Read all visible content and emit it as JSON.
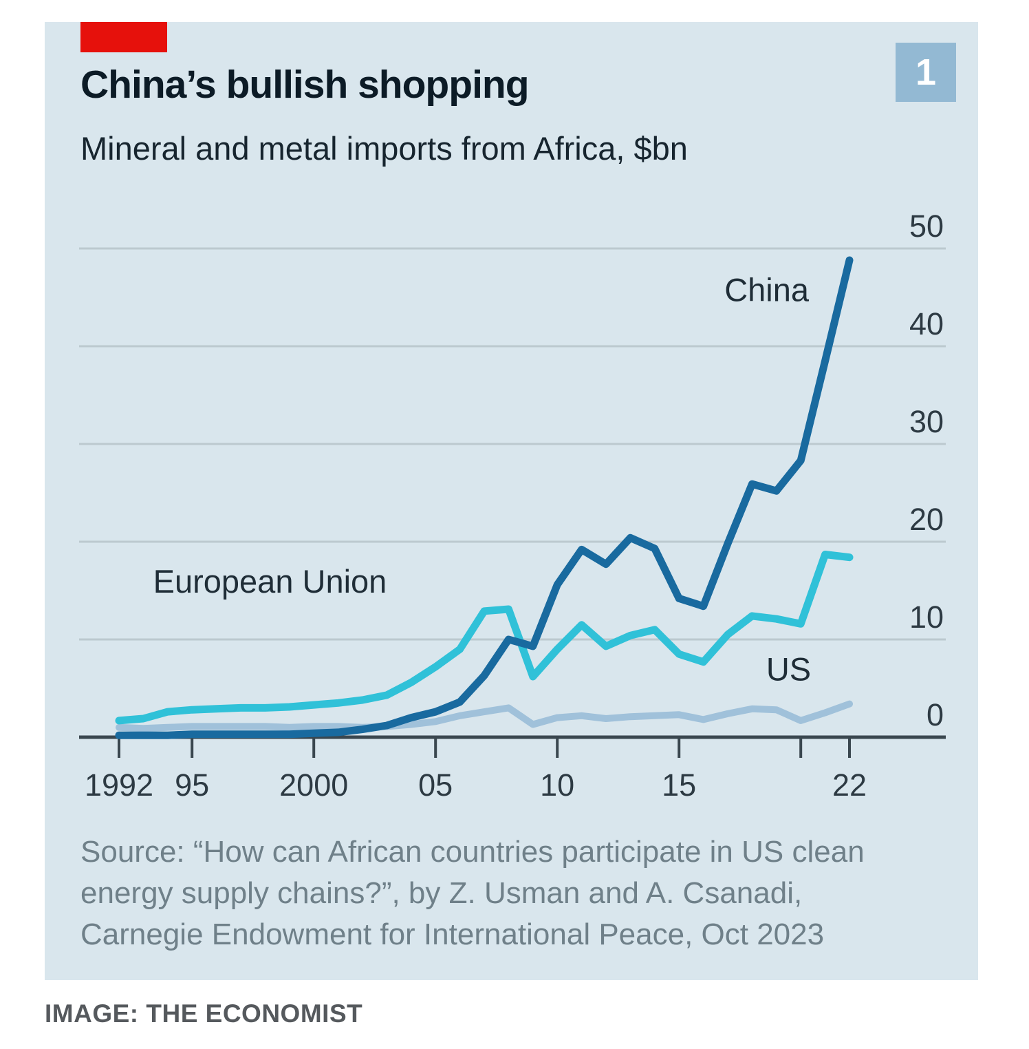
{
  "card": {
    "badge": "1"
  },
  "chart": {
    "title": "China’s bullish shopping",
    "subtitle": "Mineral and metal imports from Africa, $bn",
    "source_lines": [
      "Source: “How can African countries participate in US clean",
      "energy supply chains?”, by Z. Usman and A. Csanadi,",
      "Carnegie Endowment for International Peace, Oct 2023"
    ]
  },
  "caption": "IMAGE: THE ECONOMIST",
  "colors": {
    "card_bg": "#d9e6ed",
    "accent_red": "#e6110c",
    "grid": "#bcc9cf",
    "axis": "#3a474f",
    "tick_label": "#2d3a43",
    "series_label": "#1f2d37",
    "china": "#196a9f",
    "eu": "#30c1d8",
    "us": "#a0c1da"
  },
  "chart_data": {
    "type": "line",
    "title": "China’s bullish shopping",
    "subtitle": "Mineral and metal imports from Africa, $bn",
    "xlabel": "",
    "ylabel": "$bn",
    "ylim": [
      0,
      50
    ],
    "grid": "horizontal",
    "legend": "inline-labels",
    "x": [
      1992,
      1993,
      1994,
      1995,
      1996,
      1997,
      1998,
      1999,
      2000,
      2001,
      2002,
      2003,
      2004,
      2005,
      2006,
      2007,
      2008,
      2009,
      2010,
      2011,
      2012,
      2013,
      2014,
      2015,
      2016,
      2017,
      2018,
      2019,
      2020,
      2021,
      2022
    ],
    "y_ticks": [
      0,
      10,
      20,
      30,
      40,
      50
    ],
    "x_ticks": [
      {
        "x": 1992,
        "label": "1992"
      },
      {
        "x": 1995,
        "label": "95"
      },
      {
        "x": 2000,
        "label": "2000"
      },
      {
        "x": 2005,
        "label": "05"
      },
      {
        "x": 2010,
        "label": "10"
      },
      {
        "x": 2015,
        "label": "15"
      },
      {
        "x": 2020,
        "label": ""
      },
      {
        "x": 2022,
        "label": "22"
      }
    ],
    "series": [
      {
        "id": "china",
        "name": "China",
        "color": "#196a9f",
        "width": 11,
        "values": [
          0.2,
          0.2,
          0.2,
          0.3,
          0.3,
          0.3,
          0.3,
          0.3,
          0.4,
          0.5,
          0.8,
          1.2,
          2.0,
          2.6,
          3.6,
          6.3,
          10.0,
          9.3,
          15.6,
          19.2,
          17.7,
          20.4,
          19.3,
          14.2,
          13.4,
          19.8,
          25.9,
          25.2,
          28.3,
          38.5,
          48.8
        ],
        "label": {
          "text": "China",
          "x": 2018.6,
          "y": 44.6
        }
      },
      {
        "id": "eu",
        "name": "European Union",
        "color": "#30c1d8",
        "width": 11,
        "values": [
          1.7,
          1.9,
          2.6,
          2.8,
          2.9,
          3.0,
          3.0,
          3.1,
          3.3,
          3.5,
          3.8,
          4.3,
          5.6,
          7.2,
          9.0,
          12.9,
          13.1,
          6.2,
          9.0,
          11.5,
          9.3,
          10.4,
          11.0,
          8.5,
          7.7,
          10.5,
          12.4,
          12.1,
          11.6,
          18.7,
          18.4
        ],
        "label": {
          "text": "European Union",
          "x": 1998.2,
          "y": 14.8
        }
      },
      {
        "id": "us",
        "name": "US",
        "color": "#a0c1da",
        "width": 10,
        "values": [
          1.0,
          0.9,
          1.0,
          1.1,
          1.1,
          1.1,
          1.1,
          1.0,
          1.1,
          1.1,
          1.0,
          1.1,
          1.3,
          1.6,
          2.2,
          2.6,
          3.0,
          1.3,
          2.0,
          2.2,
          1.9,
          2.1,
          2.2,
          2.3,
          1.8,
          2.4,
          2.9,
          2.8,
          1.7,
          2.5,
          3.4
        ],
        "label": {
          "text": "US",
          "x": 2019.5,
          "y": 5.8
        }
      }
    ]
  }
}
